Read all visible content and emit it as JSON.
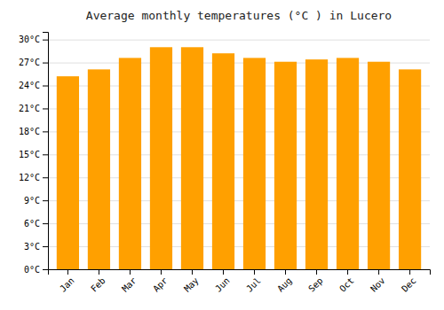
{
  "chart_data": {
    "type": "bar",
    "title": "Average monthly temperatures (°C ) in Lucero",
    "categories": [
      "Jan",
      "Feb",
      "Mar",
      "Apr",
      "May",
      "Jun",
      "Jul",
      "Aug",
      "Sep",
      "Oct",
      "Nov",
      "Dec"
    ],
    "values": [
      25.2,
      26.1,
      27.6,
      29.0,
      29.0,
      28.2,
      27.6,
      27.1,
      27.4,
      27.6,
      27.1,
      26.1
    ],
    "color": "#FFA000",
    "ylim": [
      0,
      31
    ],
    "yticks": [
      {
        "value": 0,
        "label": "0°C"
      },
      {
        "value": 3,
        "label": "3°C"
      },
      {
        "value": 6,
        "label": "6°C"
      },
      {
        "value": 9,
        "label": "9°C"
      },
      {
        "value": 12,
        "label": "12°C"
      },
      {
        "value": 15,
        "label": "15°C"
      },
      {
        "value": 18,
        "label": "18°C"
      },
      {
        "value": 21,
        "label": "21°C"
      },
      {
        "value": 24,
        "label": "24°C"
      },
      {
        "value": 27,
        "label": "27°C"
      },
      {
        "value": 30,
        "label": "30°C"
      }
    ],
    "grid": true
  }
}
